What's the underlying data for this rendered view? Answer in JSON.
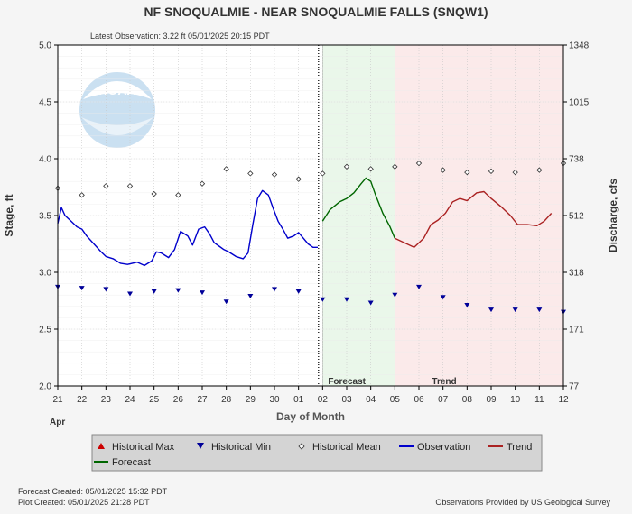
{
  "chart_data": {
    "type": "line",
    "title": "NF SNOQUALMIE - NEAR SNOQUALMIE FALLS  (SNQW1)",
    "subtitle": "Latest Observation: 3.22 ft 05/01/2025 20:15 PDT",
    "xlabel": "Day of Month",
    "x_month_label": "Apr",
    "ylabel": "Stage, ft",
    "y2label": "Discharge, cfs",
    "ylim": [
      2.0,
      5.0
    ],
    "y_ticks": [
      "2.0",
      "2.5",
      "3.0",
      "3.5",
      "4.0",
      "4.5",
      "5.0"
    ],
    "y2_ticks": [
      "77",
      "171",
      "318",
      "512",
      "738",
      "1015",
      "1348"
    ],
    "x_ticks": [
      "21",
      "22",
      "23",
      "24",
      "25",
      "26",
      "27",
      "28",
      "29",
      "30",
      "01",
      "02",
      "03",
      "04",
      "05",
      "06",
      "07",
      "08",
      "09",
      "10",
      "11",
      "12"
    ],
    "xlim": [
      0,
      21
    ],
    "grid": true,
    "regions": [
      {
        "name": "Forecast",
        "start": 11,
        "end": 14,
        "color": "#eaf7ea"
      },
      {
        "name": "Trend",
        "start": 14,
        "end": 21,
        "color": "#fbeaea"
      }
    ],
    "current_time_x": 10.83,
    "series": [
      {
        "name": "Observation",
        "color": "#0000cc",
        "x": [
          0,
          0.15,
          0.3,
          0.55,
          0.8,
          1.0,
          1.2,
          1.5,
          1.8,
          2.0,
          2.3,
          2.6,
          2.9,
          3.1,
          3.3,
          3.6,
          3.9,
          4.1,
          4.3,
          4.6,
          4.85,
          5.1,
          5.4,
          5.6,
          5.85,
          6.1,
          6.3,
          6.5,
          6.7,
          6.9,
          7.1,
          7.4,
          7.7,
          7.9,
          8.1,
          8.3,
          8.5,
          8.75,
          8.95,
          9.15,
          9.35,
          9.55,
          9.8,
          10.0,
          10.2,
          10.4,
          10.6,
          10.8
        ],
        "values": [
          3.43,
          3.57,
          3.5,
          3.45,
          3.4,
          3.38,
          3.32,
          3.25,
          3.18,
          3.14,
          3.12,
          3.08,
          3.07,
          3.08,
          3.09,
          3.06,
          3.1,
          3.18,
          3.17,
          3.13,
          3.2,
          3.36,
          3.32,
          3.24,
          3.38,
          3.4,
          3.34,
          3.26,
          3.23,
          3.2,
          3.18,
          3.14,
          3.12,
          3.17,
          3.42,
          3.65,
          3.72,
          3.68,
          3.56,
          3.45,
          3.38,
          3.3,
          3.32,
          3.35,
          3.3,
          3.25,
          3.22,
          3.22
        ]
      },
      {
        "name": "Forecast",
        "color": "#006600",
        "x": [
          11.0,
          11.3,
          11.7,
          12.0,
          12.3,
          12.6,
          12.8,
          13.0,
          13.2,
          13.5,
          13.8,
          14.0
        ],
        "values": [
          3.45,
          3.55,
          3.62,
          3.65,
          3.7,
          3.78,
          3.83,
          3.8,
          3.68,
          3.52,
          3.4,
          3.3
        ]
      },
      {
        "name": "Trend",
        "color": "#aa2222",
        "x": [
          14.0,
          14.4,
          14.8,
          15.2,
          15.5,
          15.8,
          16.1,
          16.4,
          16.7,
          17.0,
          17.4,
          17.7,
          18.0,
          18.4,
          18.8,
          19.1,
          19.5,
          19.9,
          20.2,
          20.5
        ],
        "values": [
          3.3,
          3.26,
          3.22,
          3.3,
          3.42,
          3.46,
          3.52,
          3.62,
          3.65,
          3.63,
          3.7,
          3.71,
          3.65,
          3.58,
          3.5,
          3.42,
          3.42,
          3.41,
          3.45,
          3.52
        ]
      }
    ],
    "historical_mean": {
      "name": "Historical Mean",
      "x": [
        0,
        1,
        2,
        3,
        4,
        5,
        6,
        7,
        8,
        9,
        10,
        11,
        12,
        13,
        14,
        15,
        16,
        17,
        18,
        19,
        20,
        21
      ],
      "values": [
        3.74,
        3.68,
        3.76,
        3.76,
        3.69,
        3.68,
        3.78,
        3.91,
        3.87,
        3.86,
        3.82,
        3.87,
        3.93,
        3.91,
        3.93,
        3.96,
        3.9,
        3.88,
        3.89,
        3.88,
        3.9,
        3.96
      ]
    },
    "historical_min": {
      "name": "Historical Min",
      "x": [
        0,
        1,
        2,
        3,
        4,
        5,
        6,
        7,
        8,
        9,
        10,
        11,
        12,
        13,
        14,
        15,
        16,
        17,
        18,
        19,
        20,
        21
      ],
      "values": [
        2.87,
        2.86,
        2.85,
        2.81,
        2.83,
        2.84,
        2.82,
        2.74,
        2.79,
        2.85,
        2.83,
        2.76,
        2.76,
        2.73,
        2.8,
        2.87,
        2.78,
        2.71,
        2.67,
        2.67,
        2.67,
        2.65
      ]
    },
    "legend": {
      "placement": "bottom",
      "items": [
        {
          "label": "Historical Max",
          "symbol": "triangle-up",
          "color": "#cc0000"
        },
        {
          "label": "Historical Min",
          "symbol": "triangle-down",
          "color": "#000099"
        },
        {
          "label": "Historical Mean",
          "symbol": "diamond",
          "color": "#333333"
        },
        {
          "label": "Observation",
          "symbol": "line",
          "color": "#0000cc"
        },
        {
          "label": "Trend",
          "symbol": "line",
          "color": "#aa2222"
        },
        {
          "label": "Forecast",
          "symbol": "line",
          "color": "#006600"
        }
      ]
    }
  },
  "footer": {
    "forecast_created": "Forecast Created: 05/01/2025 15:32 PDT",
    "plot_created": "Plot Created: 05/01/2025 21:28 PDT",
    "credit": "Observations Provided by US Geological Survey"
  },
  "logo": {
    "text": "NOAA"
  }
}
